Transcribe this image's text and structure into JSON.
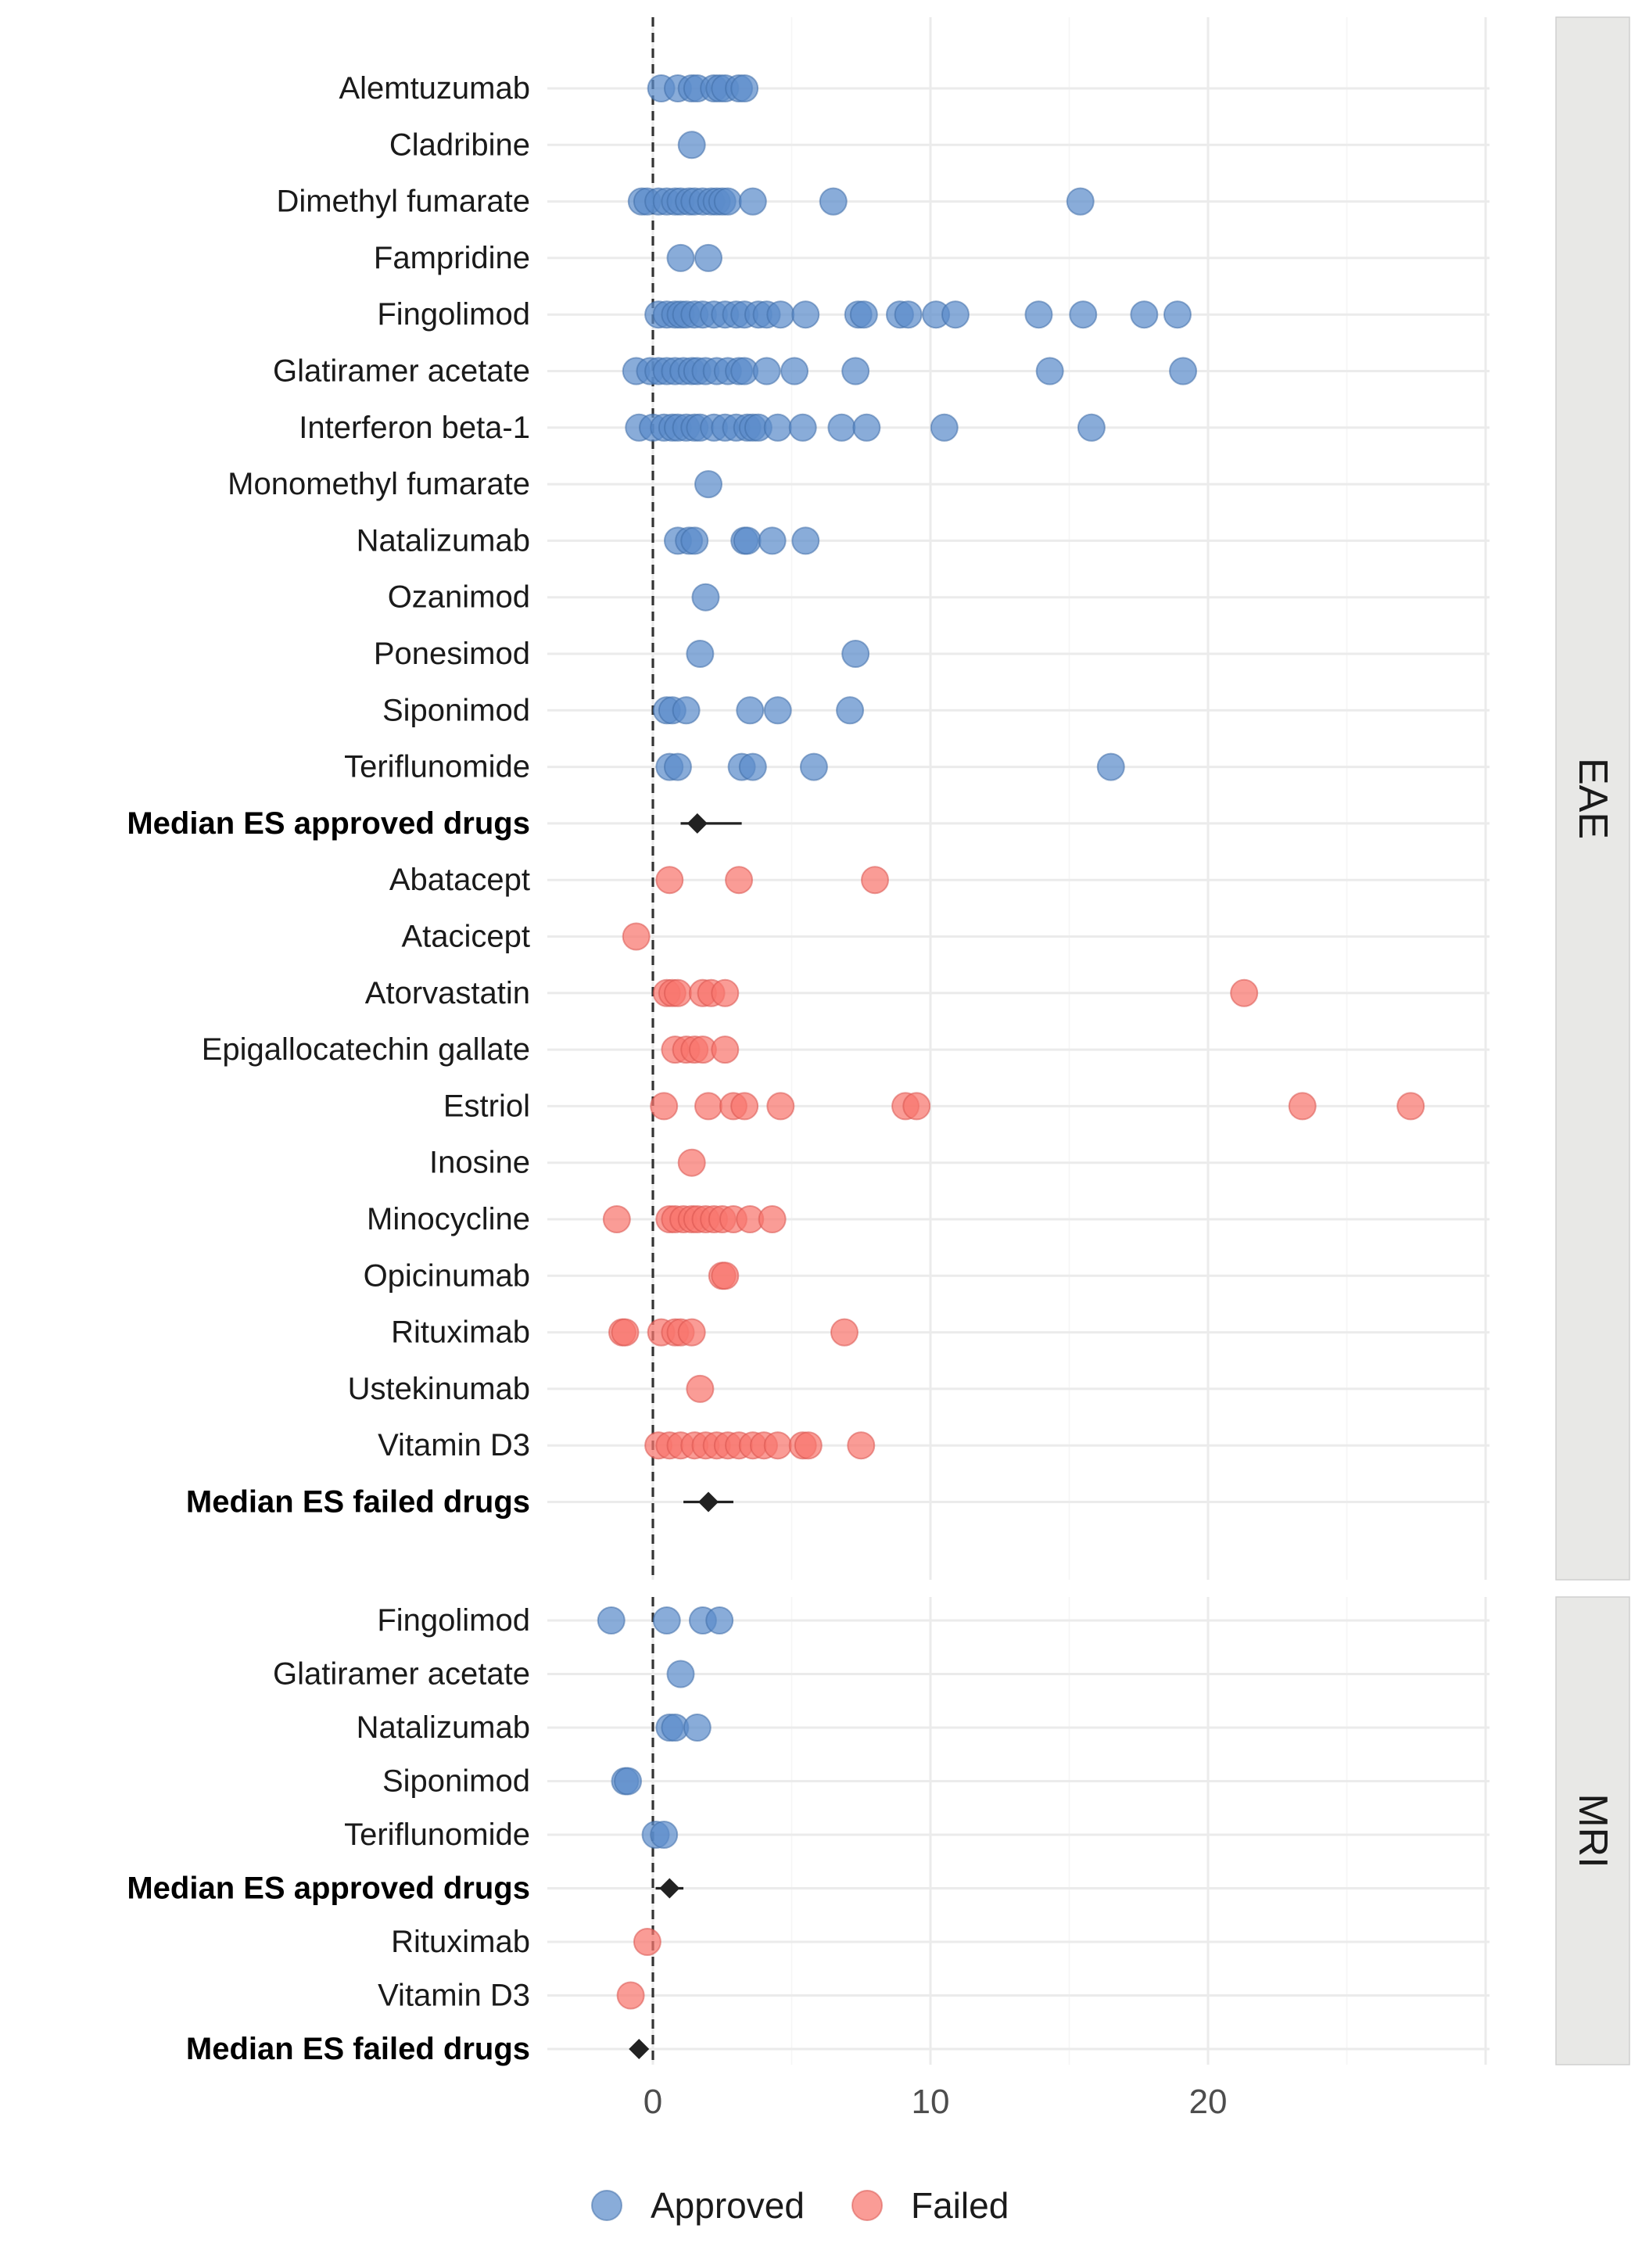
{
  "chart_data": {
    "type": "scatter",
    "xlim": [
      -4,
      30
    ],
    "x_ticks": [
      0,
      10,
      20
    ],
    "reference_line_x": 0,
    "grid": true,
    "legend_position": "bottom",
    "colors": {
      "Approved": "#5B8CCB",
      "Failed": "#F8766D",
      "median": "#222222",
      "strip_fill": "#E8E8E6"
    },
    "legend": [
      {
        "name": "Approved",
        "color": "#5B8CCB"
      },
      {
        "name": "Failed",
        "color": "#F8766D"
      }
    ],
    "panels": [
      {
        "label": "EAE",
        "rows": [
          {
            "label": "Alemtuzumab",
            "group": "Approved",
            "values": [
              0.3,
              0.9,
              1.4,
              1.6,
              2.2,
              2.4,
              2.6,
              3.1,
              3.3
            ]
          },
          {
            "label": "Cladribine",
            "group": "Approved",
            "values": [
              1.4
            ]
          },
          {
            "label": "Dimethyl fumarate",
            "group": "Approved",
            "values": [
              -0.4,
              -0.2,
              0.2,
              0.5,
              0.8,
              1.0,
              1.3,
              1.5,
              1.8,
              2.1,
              2.3,
              2.5,
              2.7,
              3.6,
              6.5,
              15.4
            ]
          },
          {
            "label": "Fampridine",
            "group": "Approved",
            "values": [
              1.0,
              2.0
            ]
          },
          {
            "label": "Fingolimod",
            "group": "Approved",
            "values": [
              0.2,
              0.5,
              0.8,
              1.0,
              1.2,
              1.5,
              1.8,
              2.2,
              2.6,
              3.0,
              3.3,
              3.8,
              4.1,
              4.6,
              5.5,
              7.4,
              7.6,
              8.9,
              9.2,
              10.2,
              10.9,
              13.9,
              15.5,
              17.7,
              18.9
            ]
          },
          {
            "label": "Glatiramer acetate",
            "group": "Approved",
            "values": [
              -0.6,
              -0.1,
              0.2,
              0.5,
              0.8,
              1.1,
              1.4,
              1.6,
              1.9,
              2.3,
              2.7,
              3.1,
              3.3,
              4.1,
              5.1,
              7.3,
              14.3,
              19.1
            ]
          },
          {
            "label": "Interferon beta-1",
            "group": "Approved",
            "values": [
              -0.5,
              0.0,
              0.4,
              0.7,
              0.9,
              1.2,
              1.5,
              1.7,
              2.2,
              2.6,
              3.0,
              3.4,
              3.6,
              3.8,
              4.5,
              5.4,
              6.8,
              7.7,
              10.5,
              15.8
            ]
          },
          {
            "label": "Monomethyl fumarate",
            "group": "Approved",
            "values": [
              2.0
            ]
          },
          {
            "label": "Natalizumab",
            "group": "Approved",
            "values": [
              0.9,
              1.3,
              1.5,
              3.3,
              3.4,
              4.3,
              5.5
            ]
          },
          {
            "label": "Ozanimod",
            "group": "Approved",
            "values": [
              1.9
            ]
          },
          {
            "label": "Ponesimod",
            "group": "Approved",
            "values": [
              1.7,
              7.3
            ]
          },
          {
            "label": "Siponimod",
            "group": "Approved",
            "values": [
              0.5,
              0.7,
              1.2,
              3.5,
              4.5,
              7.1
            ]
          },
          {
            "label": "Teriflunomide",
            "group": "Approved",
            "values": [
              0.6,
              0.9,
              3.2,
              3.6,
              5.8,
              16.5
            ]
          },
          {
            "label": "Median ES approved drugs",
            "group": "median",
            "bold": true,
            "median": 1.6,
            "ci": [
              1.0,
              3.2
            ]
          },
          {
            "label": "Abatacept",
            "group": "Failed",
            "values": [
              0.6,
              3.1,
              8.0
            ]
          },
          {
            "label": "Atacicept",
            "group": "Failed",
            "values": [
              -0.6
            ]
          },
          {
            "label": "Atorvastatin",
            "group": "Failed",
            "values": [
              0.5,
              0.7,
              0.9,
              1.8,
              2.1,
              2.6,
              21.3
            ]
          },
          {
            "label": "Epigallocatechin gallate",
            "group": "Failed",
            "values": [
              0.8,
              1.2,
              1.5,
              1.8,
              2.6
            ]
          },
          {
            "label": "Estriol",
            "group": "Failed",
            "values": [
              0.4,
              2.0,
              2.9,
              3.3,
              4.6,
              9.1,
              9.5,
              23.4,
              27.3
            ]
          },
          {
            "label": "Inosine",
            "group": "Failed",
            "values": [
              1.4
            ]
          },
          {
            "label": "Minocycline",
            "group": "Failed",
            "values": [
              -1.3,
              0.6,
              0.8,
              1.1,
              1.4,
              1.6,
              1.9,
              2.2,
              2.5,
              2.9,
              3.5,
              4.3
            ]
          },
          {
            "label": "Opicinumab",
            "group": "Failed",
            "values": [
              2.5,
              2.6
            ]
          },
          {
            "label": "Rituximab",
            "group": "Failed",
            "values": [
              -1.1,
              -1.0,
              0.3,
              0.8,
              1.0,
              1.4,
              6.9
            ]
          },
          {
            "label": "Ustekinumab",
            "group": "Failed",
            "values": [
              1.7
            ]
          },
          {
            "label": "Vitamin D3",
            "group": "Failed",
            "values": [
              0.2,
              0.6,
              1.0,
              1.5,
              1.9,
              2.3,
              2.7,
              3.1,
              3.6,
              4.0,
              4.5,
              5.4,
              5.6,
              7.5
            ]
          },
          {
            "label": "Median ES failed drugs",
            "group": "median",
            "bold": true,
            "median": 2.0,
            "ci": [
              1.1,
              2.9
            ]
          }
        ]
      },
      {
        "label": "MRI",
        "rows": [
          {
            "label": "Fingolimod",
            "group": "Approved",
            "values": [
              -1.5,
              0.5,
              1.8,
              2.4
            ]
          },
          {
            "label": "Glatiramer acetate",
            "group": "Approved",
            "values": [
              1.0
            ]
          },
          {
            "label": "Natalizumab",
            "group": "Approved",
            "values": [
              0.6,
              0.8,
              1.6
            ]
          },
          {
            "label": "Siponimod",
            "group": "Approved",
            "values": [
              -1.0,
              -0.9
            ]
          },
          {
            "label": "Teriflunomide",
            "group": "Approved",
            "values": [
              0.1,
              0.4
            ]
          },
          {
            "label": "Median ES approved drugs",
            "group": "median",
            "bold": true,
            "median": 0.6,
            "ci": [
              0.1,
              1.1
            ]
          },
          {
            "label": "Rituximab",
            "group": "Failed",
            "values": [
              -0.2
            ]
          },
          {
            "label": "Vitamin D3",
            "group": "Failed",
            "values": [
              -0.8
            ]
          },
          {
            "label": "Median ES failed drugs",
            "group": "median",
            "bold": true,
            "median": -0.5,
            "ci": [
              -0.8,
              -0.2
            ]
          }
        ]
      }
    ]
  }
}
